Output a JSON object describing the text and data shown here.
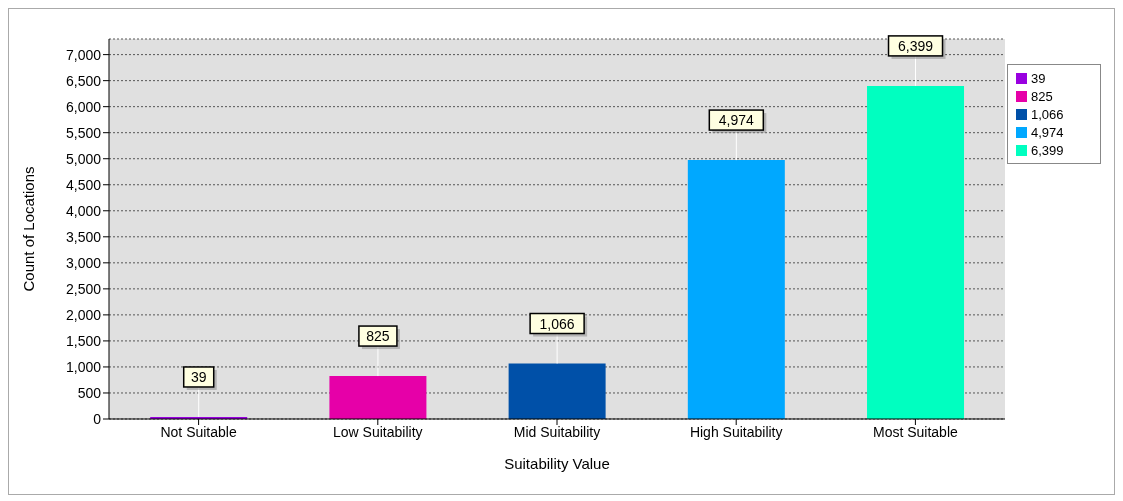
{
  "chart_data": {
    "type": "bar",
    "xlabel": "Suitability Value",
    "ylabel": "Count of Locations",
    "categories": [
      "Not Suitable",
      "Low Suitability",
      "Mid Suitability",
      "High Suitability",
      "Most Suitable"
    ],
    "stacked": true,
    "series": [
      {
        "name": "39",
        "color": "#9900e0",
        "values": [
          39,
          null,
          null,
          null,
          null
        ],
        "value_labels": [
          "39",
          null,
          null,
          null,
          null
        ]
      },
      {
        "name": "825",
        "color": "#e600a8",
        "values": [
          null,
          825,
          null,
          null,
          null
        ],
        "value_labels": [
          null,
          "825",
          null,
          null,
          null
        ]
      },
      {
        "name": "1,066",
        "color": "#0050a8",
        "values": [
          null,
          null,
          1066,
          null,
          null
        ],
        "value_labels": [
          null,
          null,
          "1,066",
          null,
          null
        ]
      },
      {
        "name": "4,974",
        "color": "#00a8ff",
        "values": [
          null,
          null,
          null,
          4974,
          null
        ],
        "value_labels": [
          null,
          null,
          null,
          "4,974",
          null
        ]
      },
      {
        "name": "6,399",
        "color": "#00ffc0",
        "values": [
          null,
          null,
          null,
          null,
          6399
        ],
        "value_labels": [
          null,
          null,
          null,
          null,
          "6,399"
        ]
      }
    ],
    "ylim": [
      0,
      7300
    ],
    "yticks": [
      0,
      500,
      {
        "value": 1000,
        "label": "1,000"
      },
      {
        "value": 1500,
        "label": "1,500"
      },
      {
        "value": 2000,
        "label": "2,000"
      },
      {
        "value": 2500,
        "label": "2,500"
      },
      {
        "value": 3000,
        "label": "3,000"
      },
      {
        "value": 3500,
        "label": "3,500"
      },
      {
        "value": 4000,
        "label": "4,000"
      },
      {
        "value": 4500,
        "label": "4,500"
      },
      {
        "value": 5000,
        "label": "5,000"
      },
      {
        "value": 5500,
        "label": "5,500"
      },
      {
        "value": 6000,
        "label": "6,000"
      },
      {
        "value": 6500,
        "label": "6,500"
      },
      {
        "value": 7000,
        "label": "7,000"
      }
    ],
    "grid": "y",
    "legend": "right"
  }
}
